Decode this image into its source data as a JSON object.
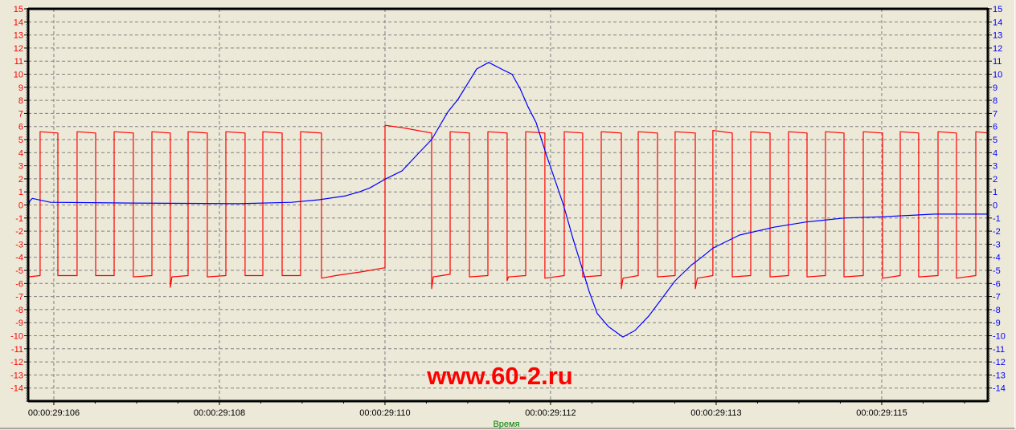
{
  "colors": {
    "background": "#ECE9D8",
    "grid": "#808080",
    "axis": "#000000",
    "left_axis_labels": "#FF0000",
    "right_axis_labels": "#0000FF",
    "x_axis_title": "#008000",
    "watermark": "#FF0000"
  },
  "watermark": "www.60-2.ru",
  "chart_data": {
    "type": "line",
    "xlabel": "Время",
    "x_unit": "ms within 00:00:29",
    "xlim": [
      105.713,
      116.436
    ],
    "x_ticks": [
      {
        "value": 106.0,
        "label": "00:00:29:106"
      },
      {
        "value": 107.85,
        "label": "00:00:29:108"
      },
      {
        "value": 109.7,
        "label": "00:00:29:110"
      },
      {
        "value": 111.55,
        "label": "00:00:29:112"
      },
      {
        "value": 113.4,
        "label": "00:00:29:113"
      },
      {
        "value": 115.25,
        "label": "00:00:29:115"
      }
    ],
    "ylim_left": [
      -15,
      15
    ],
    "ylim_right": [
      -15,
      15
    ],
    "y_ticks_left": [
      15,
      14,
      13,
      12,
      11,
      10,
      9,
      8,
      7,
      6,
      5,
      4,
      3,
      2,
      1,
      0,
      -1,
      -2,
      -3,
      -4,
      -5,
      -6,
      -7,
      -8,
      -9,
      -10,
      -11,
      -12,
      -13,
      -14
    ],
    "y_ticks_right": [
      15,
      14,
      13,
      12,
      11,
      10,
      9,
      8,
      7,
      6,
      5,
      4,
      3,
      2,
      1,
      0,
      -1,
      -2,
      -3,
      -4,
      -5,
      -6,
      -7,
      -8,
      -9,
      -10,
      -11,
      -12,
      -13,
      -14
    ],
    "grid": true,
    "series": [
      {
        "color": "#FF0000",
        "axis": "left",
        "points": [
          [
            105.713,
            -5.5
          ],
          [
            105.847,
            -5.4
          ],
          [
            105.847,
            5.6
          ],
          [
            106.045,
            5.5
          ],
          [
            106.045,
            -5.4
          ],
          [
            106.26,
            -5.4
          ],
          [
            106.26,
            5.6
          ],
          [
            106.467,
            5.5
          ],
          [
            106.467,
            -5.4
          ],
          [
            106.674,
            -5.4
          ],
          [
            106.674,
            5.6
          ],
          [
            106.889,
            5.5
          ],
          [
            106.889,
            -5.5
          ],
          [
            107.096,
            -5.4
          ],
          [
            107.096,
            5.6
          ],
          [
            107.302,
            5.5
          ],
          [
            107.302,
            -6.3
          ],
          [
            107.32,
            -5.5
          ],
          [
            107.5,
            -5.4
          ],
          [
            107.5,
            5.6
          ],
          [
            107.715,
            5.5
          ],
          [
            107.715,
            -5.5
          ],
          [
            107.922,
            -5.4
          ],
          [
            107.922,
            5.6
          ],
          [
            108.137,
            5.5
          ],
          [
            108.137,
            -5.4
          ],
          [
            108.335,
            -5.4
          ],
          [
            108.335,
            5.6
          ],
          [
            108.551,
            5.5
          ],
          [
            108.551,
            -5.4
          ],
          [
            108.757,
            -5.4
          ],
          [
            108.757,
            5.6
          ],
          [
            108.991,
            5.5
          ],
          [
            108.991,
            -5.6
          ],
          [
            109.15,
            -5.4
          ],
          [
            109.45,
            -5.1
          ],
          [
            109.7,
            -4.8
          ],
          [
            109.7,
            6.1
          ],
          [
            109.9,
            5.9
          ],
          [
            110.221,
            5.5
          ],
          [
            110.221,
            -6.4
          ],
          [
            110.24,
            -5.5
          ],
          [
            110.428,
            -5.3
          ],
          [
            110.428,
            5.6
          ],
          [
            110.643,
            5.5
          ],
          [
            110.643,
            -5.5
          ],
          [
            110.85,
            -5.4
          ],
          [
            110.85,
            5.6
          ],
          [
            111.065,
            5.5
          ],
          [
            111.065,
            -5.8
          ],
          [
            111.08,
            -5.5
          ],
          [
            111.272,
            -5.4
          ],
          [
            111.272,
            5.6
          ],
          [
            111.487,
            5.5
          ],
          [
            111.487,
            -5.6
          ],
          [
            111.703,
            -5.4
          ],
          [
            111.703,
            5.6
          ],
          [
            111.909,
            5.5
          ],
          [
            111.909,
            -5.5
          ],
          [
            112.116,
            -5.4
          ],
          [
            112.116,
            5.6
          ],
          [
            112.341,
            5.5
          ],
          [
            112.341,
            -6.4
          ],
          [
            112.36,
            -5.6
          ],
          [
            112.529,
            -5.4
          ],
          [
            112.529,
            5.6
          ],
          [
            112.745,
            5.5
          ],
          [
            112.745,
            -5.5
          ],
          [
            112.942,
            -5.4
          ],
          [
            112.942,
            5.6
          ],
          [
            113.167,
            5.5
          ],
          [
            113.167,
            -6.4
          ],
          [
            113.19,
            -5.6
          ],
          [
            113.364,
            -5.4
          ],
          [
            113.364,
            5.7
          ],
          [
            113.58,
            5.5
          ],
          [
            113.58,
            -5.5
          ],
          [
            113.787,
            -5.4
          ],
          [
            113.787,
            5.6
          ],
          [
            114.002,
            5.5
          ],
          [
            114.002,
            -5.5
          ],
          [
            114.209,
            -5.4
          ],
          [
            114.209,
            5.6
          ],
          [
            114.415,
            5.5
          ],
          [
            114.415,
            -5.5
          ],
          [
            114.622,
            -5.4
          ],
          [
            114.622,
            5.6
          ],
          [
            114.828,
            5.5
          ],
          [
            114.828,
            -5.5
          ],
          [
            115.044,
            -5.4
          ],
          [
            115.044,
            5.6
          ],
          [
            115.259,
            5.5
          ],
          [
            115.259,
            -5.6
          ],
          [
            115.457,
            -5.4
          ],
          [
            115.457,
            5.6
          ],
          [
            115.663,
            5.5
          ],
          [
            115.663,
            -5.5
          ],
          [
            115.879,
            -5.4
          ],
          [
            115.879,
            5.6
          ],
          [
            116.085,
            5.5
          ],
          [
            116.085,
            -5.6
          ],
          [
            116.301,
            -5.4
          ],
          [
            116.301,
            5.6
          ],
          [
            116.436,
            5.5
          ]
        ]
      },
      {
        "color": "#0000FF",
        "axis": "right",
        "points": [
          [
            105.713,
            -0.2
          ],
          [
            105.731,
            0.3
          ],
          [
            105.76,
            0.5
          ],
          [
            105.964,
            0.2
          ],
          [
            106.862,
            0.15
          ],
          [
            108.066,
            0.1
          ],
          [
            108.658,
            0.2
          ],
          [
            108.964,
            0.4
          ],
          [
            109.26,
            0.7
          ],
          [
            109.413,
            1.0
          ],
          [
            109.53,
            1.3
          ],
          [
            109.709,
            2.0
          ],
          [
            109.889,
            2.6
          ],
          [
            110.068,
            3.9
          ],
          [
            110.221,
            5.0
          ],
          [
            110.401,
            7.1
          ],
          [
            110.518,
            8.1
          ],
          [
            110.67,
            9.8
          ],
          [
            110.724,
            10.4
          ],
          [
            110.859,
            10.9
          ],
          [
            111.029,
            10.3
          ],
          [
            111.119,
            10.0
          ],
          [
            111.209,
            8.9
          ],
          [
            111.299,
            7.5
          ],
          [
            111.389,
            6.3
          ],
          [
            111.505,
            3.8
          ],
          [
            111.595,
            2.0
          ],
          [
            111.694,
            0.0
          ],
          [
            111.802,
            -2.6
          ],
          [
            111.892,
            -4.6
          ],
          [
            111.981,
            -6.6
          ],
          [
            112.071,
            -8.3
          ],
          [
            112.197,
            -9.3
          ],
          [
            112.358,
            -10.1
          ],
          [
            112.493,
            -9.6
          ],
          [
            112.646,
            -8.5
          ],
          [
            112.789,
            -7.2
          ],
          [
            112.942,
            -5.8
          ],
          [
            113.122,
            -4.6
          ],
          [
            113.239,
            -4.0
          ],
          [
            113.364,
            -3.3
          ],
          [
            113.661,
            -2.3
          ],
          [
            114.047,
            -1.7
          ],
          [
            114.406,
            -1.3
          ],
          [
            114.828,
            -1.0
          ],
          [
            115.25,
            -0.9
          ],
          [
            115.843,
            -0.7
          ],
          [
            116.427,
            -0.7
          ]
        ]
      }
    ]
  }
}
